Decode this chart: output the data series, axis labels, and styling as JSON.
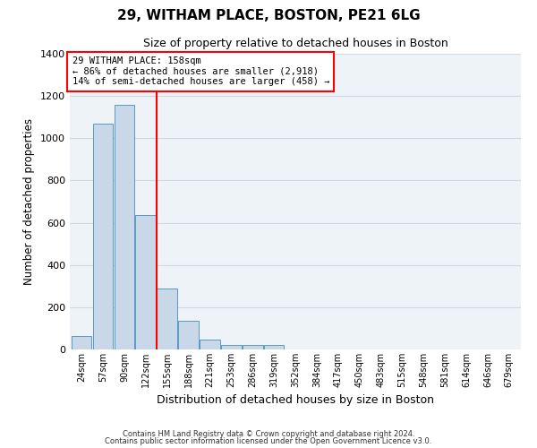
{
  "title": "29, WITHAM PLACE, BOSTON, PE21 6LG",
  "subtitle": "Size of property relative to detached houses in Boston",
  "xlabel": "Distribution of detached houses by size in Boston",
  "ylabel": "Number of detached properties",
  "bins": [
    "24sqm",
    "57sqm",
    "90sqm",
    "122sqm",
    "155sqm",
    "188sqm",
    "221sqm",
    "253sqm",
    "286sqm",
    "319sqm",
    "352sqm",
    "384sqm",
    "417sqm",
    "450sqm",
    "483sqm",
    "515sqm",
    "548sqm",
    "581sqm",
    "614sqm",
    "646sqm",
    "679sqm"
  ],
  "bar_heights": [
    65,
    1070,
    1160,
    635,
    290,
    135,
    48,
    20,
    20,
    20,
    0,
    0,
    0,
    0,
    0,
    0,
    0,
    0,
    0,
    0,
    0
  ],
  "bar_color": "#c8d8e8",
  "bar_edge_color": "#5a9abf",
  "grid_color": "#d0d8e0",
  "background_color": "#eef3f8",
  "vline_index": 4,
  "vline_color": "red",
  "annotation_text": "29 WITHAM PLACE: 158sqm\n← 86% of detached houses are smaller (2,918)\n14% of semi-detached houses are larger (458) →",
  "annotation_box_color": "white",
  "annotation_box_edge_color": "red",
  "ylim": [
    0,
    1400
  ],
  "yticks": [
    0,
    200,
    400,
    600,
    800,
    1000,
    1200,
    1400
  ],
  "footer_line1": "Contains HM Land Registry data © Crown copyright and database right 2024.",
  "footer_line2": "Contains public sector information licensed under the Open Government Licence v3.0."
}
